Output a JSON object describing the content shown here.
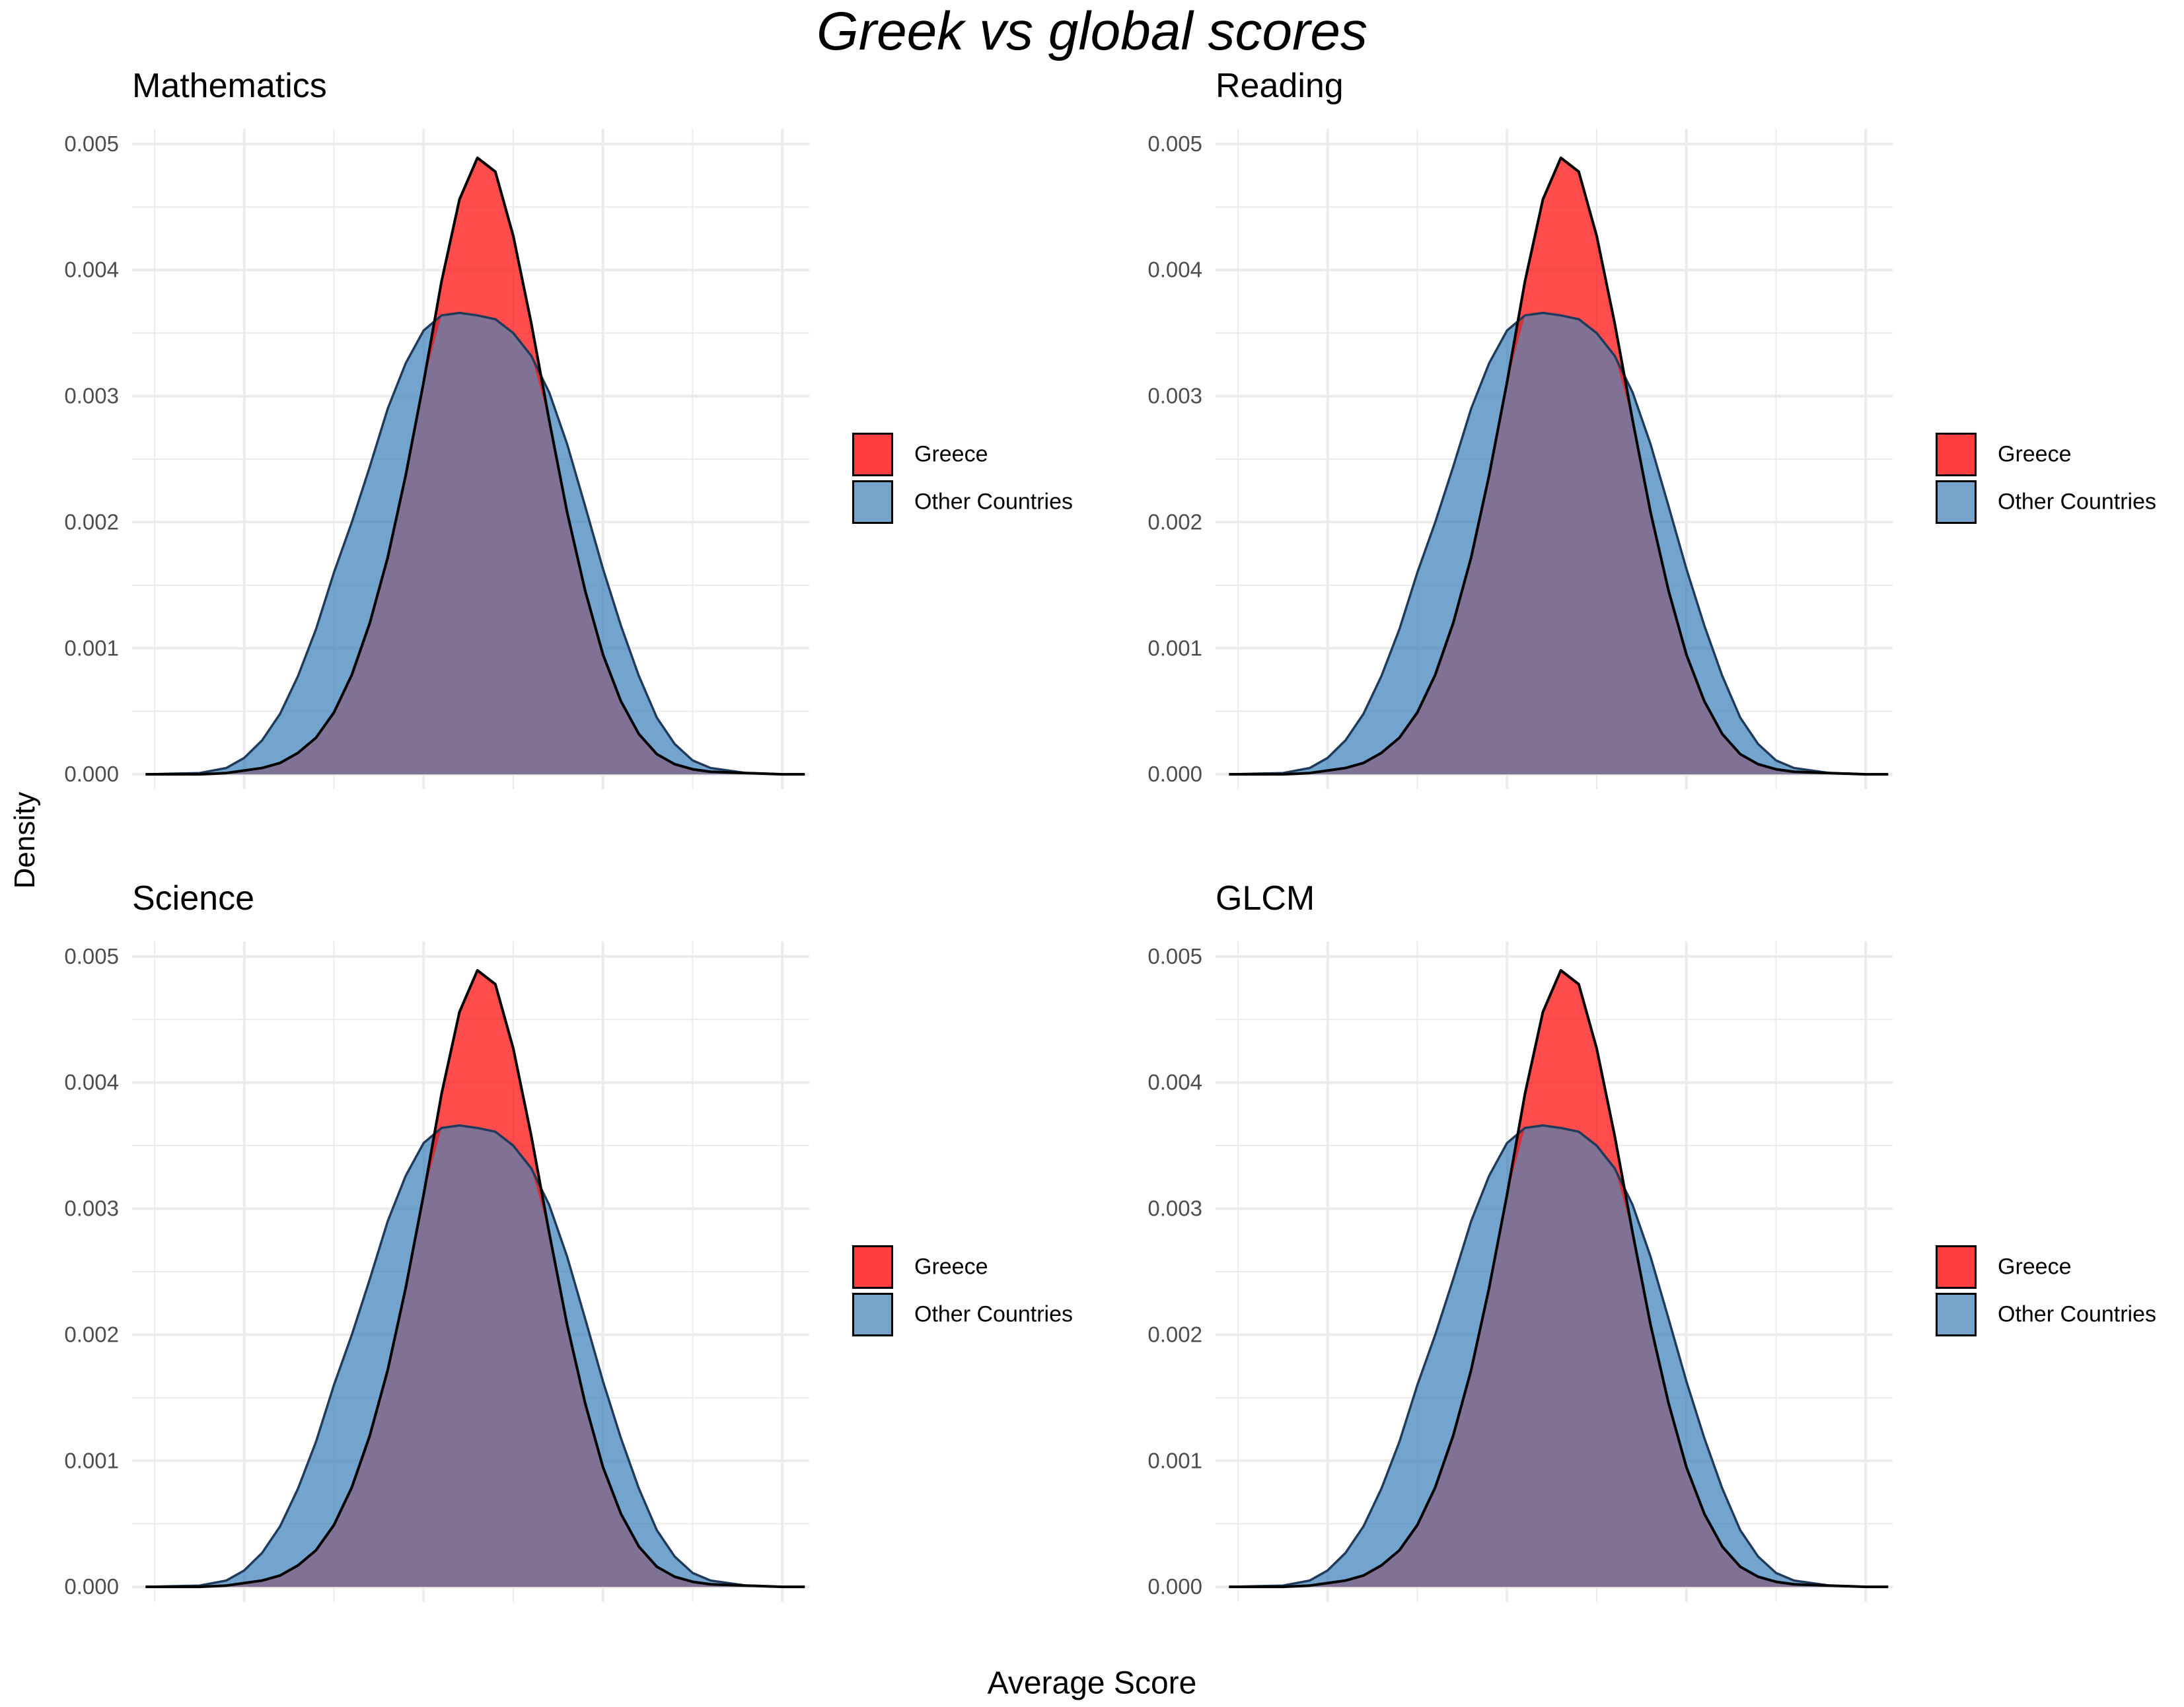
{
  "title": "Greek vs global scores",
  "xlabel": "Average Score",
  "ylabel": "Density",
  "colors": {
    "greece": "#FF0000",
    "other": "#377EB8",
    "overlap": "#7F7294",
    "grid": "#EBEBEB",
    "outline": "#000000"
  },
  "legend": {
    "items": [
      {
        "label": "Greece",
        "color": "#FF3F3F"
      },
      {
        "label": "Other Countries",
        "color": "#77A3CB"
      }
    ]
  },
  "chart_data": [
    {
      "type": "area",
      "title": "Mathematics",
      "xlim": [
        75,
        830
      ],
      "ylim": [
        -0.00012,
        0.00512
      ],
      "xticks": [
        200,
        400,
        600,
        800
      ],
      "yticks": [
        "0.000",
        "0.001",
        "0.002",
        "0.003",
        "0.004",
        "0.005"
      ],
      "grid": true,
      "legend_position": "right",
      "series": [
        {
          "name": "Greece",
          "x": [
            90,
            150,
            180,
            200,
            220,
            240,
            260,
            280,
            300,
            320,
            340,
            360,
            380,
            400,
            420,
            440,
            460,
            480,
            500,
            520,
            540,
            560,
            580,
            600,
            620,
            640,
            660,
            680,
            700,
            720,
            760,
            800,
            825
          ],
          "y": [
            0,
            0,
            1e-05,
            3e-05,
            5e-05,
            9e-05,
            0.00017,
            0.00029,
            0.00049,
            0.00079,
            0.0012,
            0.00172,
            0.00237,
            0.00311,
            0.00391,
            0.00456,
            0.00489,
            0.00478,
            0.00427,
            0.00358,
            0.00281,
            0.00208,
            0.00146,
            0.00095,
            0.00058,
            0.00032,
            0.00016,
            8e-05,
            4e-05,
            2e-05,
            1e-05,
            0,
            0
          ]
        },
        {
          "name": "Other Countries",
          "x": [
            90,
            150,
            180,
            200,
            220,
            240,
            260,
            280,
            300,
            320,
            340,
            360,
            380,
            400,
            420,
            440,
            460,
            480,
            500,
            520,
            540,
            560,
            580,
            600,
            620,
            640,
            660,
            680,
            700,
            720,
            760,
            800,
            825
          ],
          "y": [
            0,
            1e-05,
            5e-05,
            0.00013,
            0.00027,
            0.00048,
            0.00078,
            0.00115,
            0.0016,
            0.002,
            0.00244,
            0.0029,
            0.00326,
            0.00352,
            0.00364,
            0.00366,
            0.00364,
            0.00361,
            0.0035,
            0.00332,
            0.00303,
            0.00262,
            0.00213,
            0.00163,
            0.00118,
            0.00078,
            0.00045,
            0.00024,
            0.00011,
            5e-05,
            1e-05,
            0,
            0
          ]
        }
      ]
    },
    {
      "type": "area",
      "title": "Reading",
      "xlim": [
        75,
        830
      ],
      "ylim": [
        -0.00012,
        0.00512
      ],
      "xticks": [
        200,
        400,
        600,
        800
      ],
      "yticks": [
        "0.000",
        "0.001",
        "0.002",
        "0.003",
        "0.004",
        "0.005"
      ],
      "grid": true,
      "legend_position": "right",
      "series": [
        {
          "name": "Greece",
          "x": [
            90,
            150,
            180,
            200,
            220,
            240,
            260,
            280,
            300,
            320,
            340,
            360,
            380,
            400,
            420,
            440,
            460,
            480,
            500,
            520,
            540,
            560,
            580,
            600,
            620,
            640,
            660,
            680,
            700,
            720,
            760,
            800,
            825
          ],
          "y": [
            0,
            0,
            1e-05,
            3e-05,
            5e-05,
            9e-05,
            0.00017,
            0.00029,
            0.00049,
            0.00079,
            0.0012,
            0.00172,
            0.00237,
            0.00311,
            0.00391,
            0.00456,
            0.00489,
            0.00478,
            0.00427,
            0.00358,
            0.00281,
            0.00208,
            0.00146,
            0.00095,
            0.00058,
            0.00032,
            0.00016,
            8e-05,
            4e-05,
            2e-05,
            1e-05,
            0,
            0
          ]
        },
        {
          "name": "Other Countries",
          "x": [
            90,
            150,
            180,
            200,
            220,
            240,
            260,
            280,
            300,
            320,
            340,
            360,
            380,
            400,
            420,
            440,
            460,
            480,
            500,
            520,
            540,
            560,
            580,
            600,
            620,
            640,
            660,
            680,
            700,
            720,
            760,
            800,
            825
          ],
          "y": [
            0,
            1e-05,
            5e-05,
            0.00013,
            0.00027,
            0.00048,
            0.00078,
            0.00115,
            0.0016,
            0.002,
            0.00244,
            0.0029,
            0.00326,
            0.00352,
            0.00364,
            0.00366,
            0.00364,
            0.00361,
            0.0035,
            0.00332,
            0.00303,
            0.00262,
            0.00213,
            0.00163,
            0.00118,
            0.00078,
            0.00045,
            0.00024,
            0.00011,
            5e-05,
            1e-05,
            0,
            0
          ]
        }
      ]
    },
    {
      "type": "area",
      "title": "Science",
      "xlim": [
        75,
        830
      ],
      "ylim": [
        -0.00012,
        0.00512
      ],
      "xticks": [
        200,
        400,
        600,
        800
      ],
      "yticks": [
        "0.000",
        "0.001",
        "0.002",
        "0.003",
        "0.004",
        "0.005"
      ],
      "grid": true,
      "legend_position": "right",
      "series": [
        {
          "name": "Greece",
          "x": [
            90,
            150,
            180,
            200,
            220,
            240,
            260,
            280,
            300,
            320,
            340,
            360,
            380,
            400,
            420,
            440,
            460,
            480,
            500,
            520,
            540,
            560,
            580,
            600,
            620,
            640,
            660,
            680,
            700,
            720,
            760,
            800,
            825
          ],
          "y": [
            0,
            0,
            1e-05,
            3e-05,
            5e-05,
            9e-05,
            0.00017,
            0.00029,
            0.00049,
            0.00079,
            0.0012,
            0.00172,
            0.00237,
            0.00311,
            0.00391,
            0.00456,
            0.00489,
            0.00478,
            0.00427,
            0.00358,
            0.00281,
            0.00208,
            0.00146,
            0.00095,
            0.00058,
            0.00032,
            0.00016,
            8e-05,
            4e-05,
            2e-05,
            1e-05,
            0,
            0
          ]
        },
        {
          "name": "Other Countries",
          "x": [
            90,
            150,
            180,
            200,
            220,
            240,
            260,
            280,
            300,
            320,
            340,
            360,
            380,
            400,
            420,
            440,
            460,
            480,
            500,
            520,
            540,
            560,
            580,
            600,
            620,
            640,
            660,
            680,
            700,
            720,
            760,
            800,
            825
          ],
          "y": [
            0,
            1e-05,
            5e-05,
            0.00013,
            0.00027,
            0.00048,
            0.00078,
            0.00115,
            0.0016,
            0.002,
            0.00244,
            0.0029,
            0.00326,
            0.00352,
            0.00364,
            0.00366,
            0.00364,
            0.00361,
            0.0035,
            0.00332,
            0.00303,
            0.00262,
            0.00213,
            0.00163,
            0.00118,
            0.00078,
            0.00045,
            0.00024,
            0.00011,
            5e-05,
            1e-05,
            0,
            0
          ]
        }
      ]
    },
    {
      "type": "area",
      "title": "GLCM",
      "xlim": [
        75,
        830
      ],
      "ylim": [
        -0.00012,
        0.00512
      ],
      "xticks": [
        200,
        400,
        600,
        800
      ],
      "yticks": [
        "0.000",
        "0.001",
        "0.002",
        "0.003",
        "0.004",
        "0.005"
      ],
      "grid": true,
      "legend_position": "right",
      "series": [
        {
          "name": "Greece",
          "x": [
            90,
            150,
            180,
            200,
            220,
            240,
            260,
            280,
            300,
            320,
            340,
            360,
            380,
            400,
            420,
            440,
            460,
            480,
            500,
            520,
            540,
            560,
            580,
            600,
            620,
            640,
            660,
            680,
            700,
            720,
            760,
            800,
            825
          ],
          "y": [
            0,
            0,
            1e-05,
            3e-05,
            5e-05,
            9e-05,
            0.00017,
            0.00029,
            0.00049,
            0.00079,
            0.0012,
            0.00172,
            0.00237,
            0.00311,
            0.00391,
            0.00456,
            0.00489,
            0.00478,
            0.00427,
            0.00358,
            0.00281,
            0.00208,
            0.00146,
            0.00095,
            0.00058,
            0.00032,
            0.00016,
            8e-05,
            4e-05,
            2e-05,
            1e-05,
            0,
            0
          ]
        },
        {
          "name": "Other Countries",
          "x": [
            90,
            150,
            180,
            200,
            220,
            240,
            260,
            280,
            300,
            320,
            340,
            360,
            380,
            400,
            420,
            440,
            460,
            480,
            500,
            520,
            540,
            560,
            580,
            600,
            620,
            640,
            660,
            680,
            700,
            720,
            760,
            800,
            825
          ],
          "y": [
            0,
            1e-05,
            5e-05,
            0.00013,
            0.00027,
            0.00048,
            0.00078,
            0.00115,
            0.0016,
            0.002,
            0.00244,
            0.0029,
            0.00326,
            0.00352,
            0.00364,
            0.00366,
            0.00364,
            0.00361,
            0.0035,
            0.00332,
            0.00303,
            0.00262,
            0.00213,
            0.00163,
            0.00118,
            0.00078,
            0.00045,
            0.00024,
            0.00011,
            5e-05,
            1e-05,
            0,
            0
          ]
        }
      ]
    }
  ]
}
